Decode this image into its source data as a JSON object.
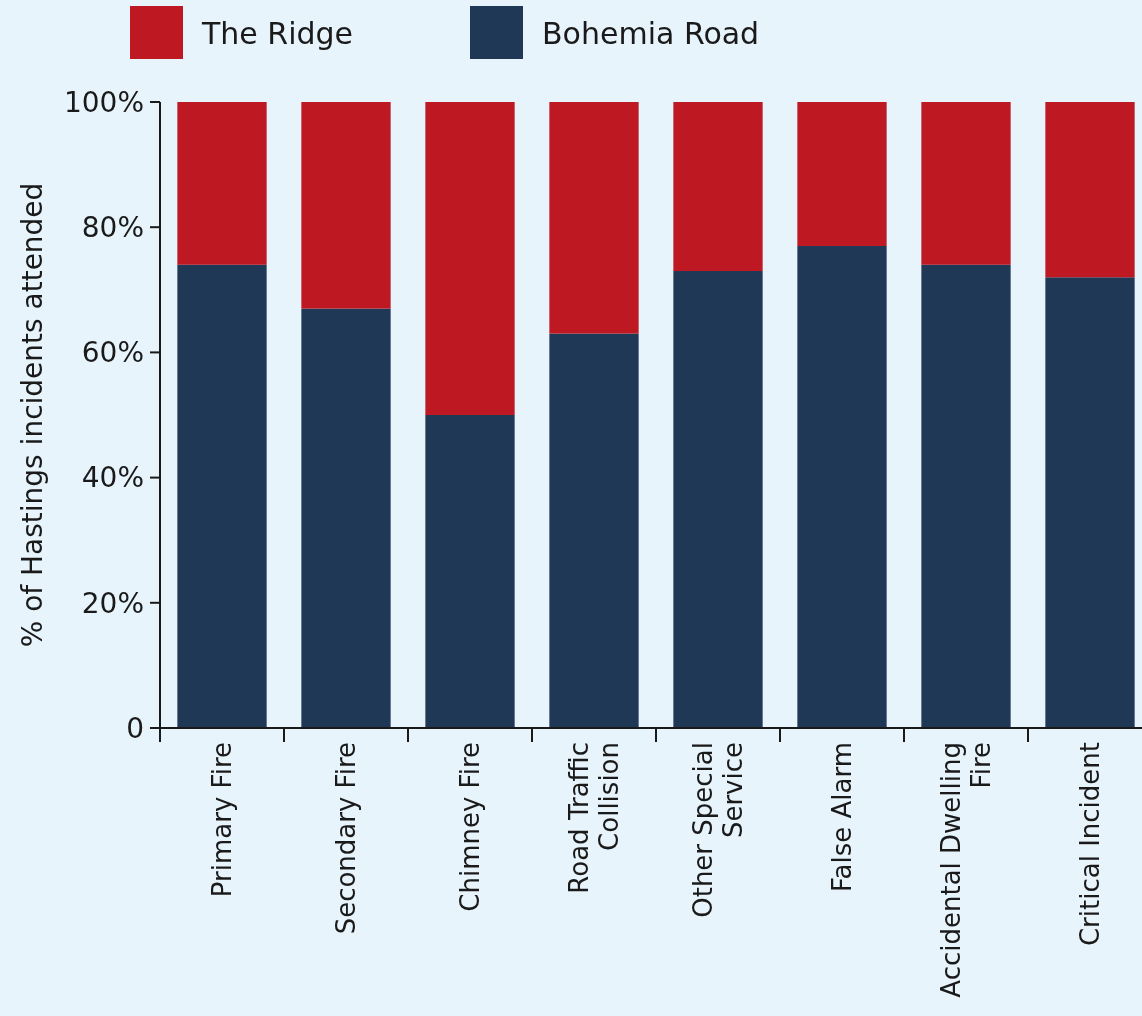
{
  "chart_data": {
    "type": "bar",
    "stacked": true,
    "ylabel": "% of Hastings incidents attended",
    "categories": [
      "Primary Fire",
      "Secondary Fire",
      "Chimney Fire",
      "Road Traffic Collision",
      "Other Special Service",
      "False Alarm",
      "Accidental Dwelling Fire",
      "Critical Incident"
    ],
    "series": [
      {
        "name": "Bohemia Road",
        "color": "#1f3856",
        "values": [
          74,
          67,
          50,
          63,
          73,
          77,
          74,
          72
        ]
      },
      {
        "name": "The Ridge",
        "color": "#be1823",
        "values": [
          26,
          33,
          50,
          37,
          27,
          23,
          26,
          28
        ]
      }
    ],
    "ylim": [
      0,
      100
    ],
    "yticks": [
      0,
      {
        "value": 20,
        "label": "20%"
      },
      {
        "value": 40,
        "label": "40%"
      },
      {
        "value": 60,
        "label": "60%"
      },
      {
        "value": 80,
        "label": "80%"
      },
      {
        "value": 100,
        "label": "100%"
      }
    ],
    "grid": false,
    "legend": "top"
  }
}
